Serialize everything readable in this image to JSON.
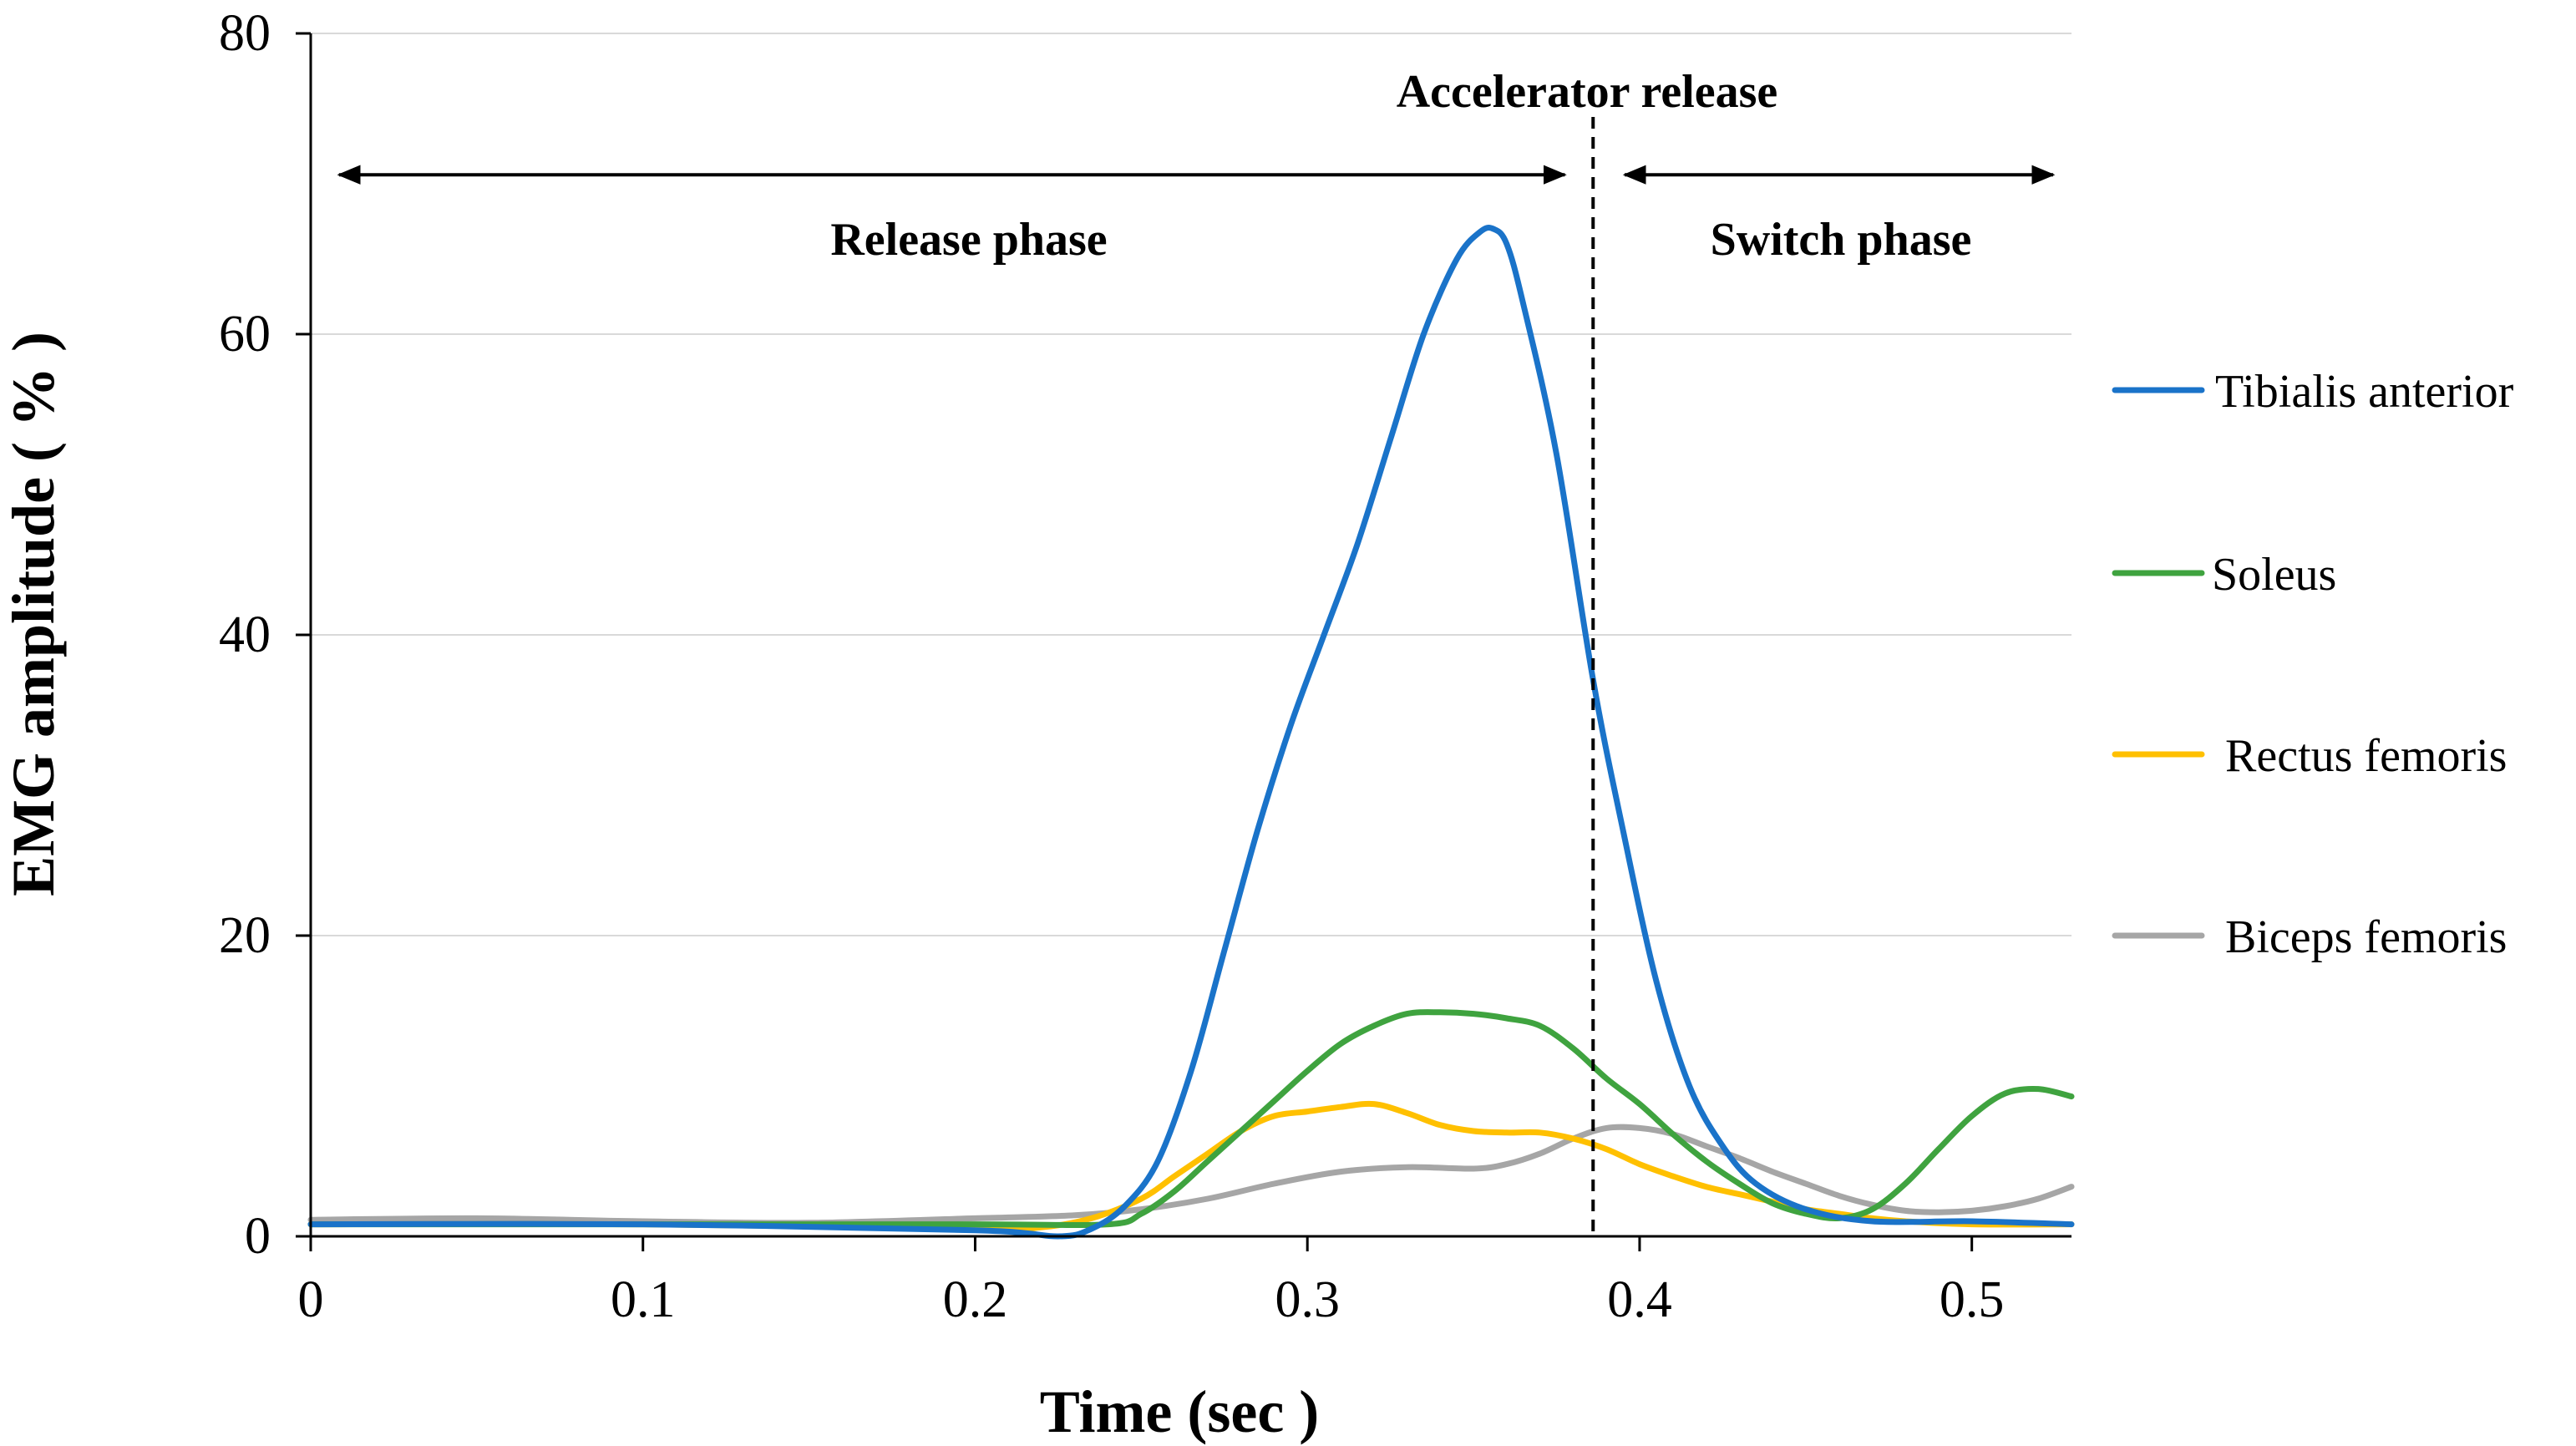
{
  "chart_data": {
    "type": "line",
    "title": "",
    "xlabel": "Time (sec )",
    "ylabel": "EMG amplitude ( % )",
    "xlim": [
      0,
      0.53
    ],
    "ylim": [
      0,
      80
    ],
    "xticks": [
      0,
      0.1,
      0.2,
      0.3,
      0.4,
      0.5
    ],
    "xtick_labels": [
      "0",
      "0.1",
      "0.2",
      "0.3",
      "0.4",
      "0.5"
    ],
    "yticks": [
      0,
      20,
      40,
      60,
      80
    ],
    "ytick_labels": [
      "0",
      "20",
      "40",
      "60",
      "80"
    ],
    "grid": true,
    "legend_position": "right",
    "annotations": {
      "event_line": {
        "x": 0.386,
        "label": "Accelerator release"
      },
      "release_phase": {
        "label": "Release phase",
        "x_start": 0.007,
        "x_end": 0.379,
        "y": 70.6
      },
      "switch_phase": {
        "label": "Switch phase",
        "x_start": 0.394,
        "x_end": 0.526,
        "y": 70.6
      }
    },
    "series": [
      {
        "name": "Tibialis anterior",
        "color": "#1a73c9",
        "x": [
          0,
          0.1,
          0.2,
          0.225,
          0.235,
          0.245,
          0.255,
          0.265,
          0.275,
          0.285,
          0.295,
          0.305,
          0.315,
          0.325,
          0.335,
          0.345,
          0.352,
          0.356,
          0.36,
          0.365,
          0.375,
          0.386,
          0.395,
          0.405,
          0.415,
          0.425,
          0.435,
          0.45,
          0.47,
          0.5,
          0.53
        ],
        "y": [
          0.8,
          0.8,
          0.4,
          0,
          0.5,
          2,
          5,
          11,
          19,
          27,
          34,
          40,
          46,
          53,
          60,
          65,
          66.8,
          67,
          66,
          62,
          52,
          37,
          27,
          17,
          10,
          6,
          3.5,
          1.8,
          1,
          1,
          0.8
        ]
      },
      {
        "name": "Soleus",
        "color": "#3fa33f",
        "x": [
          0,
          0.1,
          0.2,
          0.24,
          0.25,
          0.26,
          0.27,
          0.28,
          0.29,
          0.3,
          0.31,
          0.32,
          0.33,
          0.34,
          0.35,
          0.36,
          0.37,
          0.38,
          0.39,
          0.4,
          0.41,
          0.42,
          0.43,
          0.44,
          0.45,
          0.46,
          0.47,
          0.48,
          0.49,
          0.5,
          0.51,
          0.52,
          0.53
        ],
        "y": [
          0.8,
          0.8,
          0.8,
          0.8,
          1.5,
          3,
          5,
          7,
          9,
          11,
          12.8,
          14,
          14.8,
          14.9,
          14.8,
          14.5,
          14,
          12.5,
          10.5,
          8.8,
          6.8,
          5,
          3.5,
          2.2,
          1.5,
          1.2,
          1.8,
          3.5,
          5.8,
          8,
          9.5,
          9.8,
          9.3
        ]
      },
      {
        "name": "Rectus femoris",
        "color": "#ffc000",
        "x": [
          0,
          0.1,
          0.2,
          0.22,
          0.235,
          0.25,
          0.26,
          0.27,
          0.28,
          0.29,
          0.3,
          0.31,
          0.32,
          0.33,
          0.34,
          0.35,
          0.36,
          0.37,
          0.38,
          0.39,
          0.4,
          0.41,
          0.42,
          0.43,
          0.44,
          0.45,
          0.46,
          0.47,
          0.48,
          0.5,
          0.53
        ],
        "y": [
          0.8,
          0.8,
          0.5,
          0.6,
          1.2,
          2.5,
          4,
          5.5,
          7,
          8,
          8.3,
          8.6,
          8.8,
          8.2,
          7.4,
          7,
          6.9,
          6.9,
          6.5,
          5.8,
          4.8,
          4,
          3.3,
          2.8,
          2.3,
          1.8,
          1.5,
          1.2,
          1,
          0.8,
          0.8
        ]
      },
      {
        "name": "Biceps femoris",
        "color": "#a6a6a6",
        "x": [
          0,
          0.05,
          0.1,
          0.15,
          0.2,
          0.23,
          0.25,
          0.27,
          0.29,
          0.31,
          0.33,
          0.35,
          0.36,
          0.37,
          0.38,
          0.39,
          0.4,
          0.41,
          0.42,
          0.43,
          0.44,
          0.45,
          0.46,
          0.47,
          0.48,
          0.49,
          0.5,
          0.51,
          0.52,
          0.53
        ],
        "y": [
          1.1,
          1.2,
          1,
          0.9,
          1.2,
          1.4,
          1.8,
          2.5,
          3.5,
          4.3,
          4.6,
          4.5,
          4.8,
          5.5,
          6.5,
          7.2,
          7.2,
          6.8,
          6,
          5.2,
          4.3,
          3.5,
          2.7,
          2.1,
          1.7,
          1.6,
          1.7,
          2,
          2.5,
          3.3
        ]
      }
    ]
  }
}
